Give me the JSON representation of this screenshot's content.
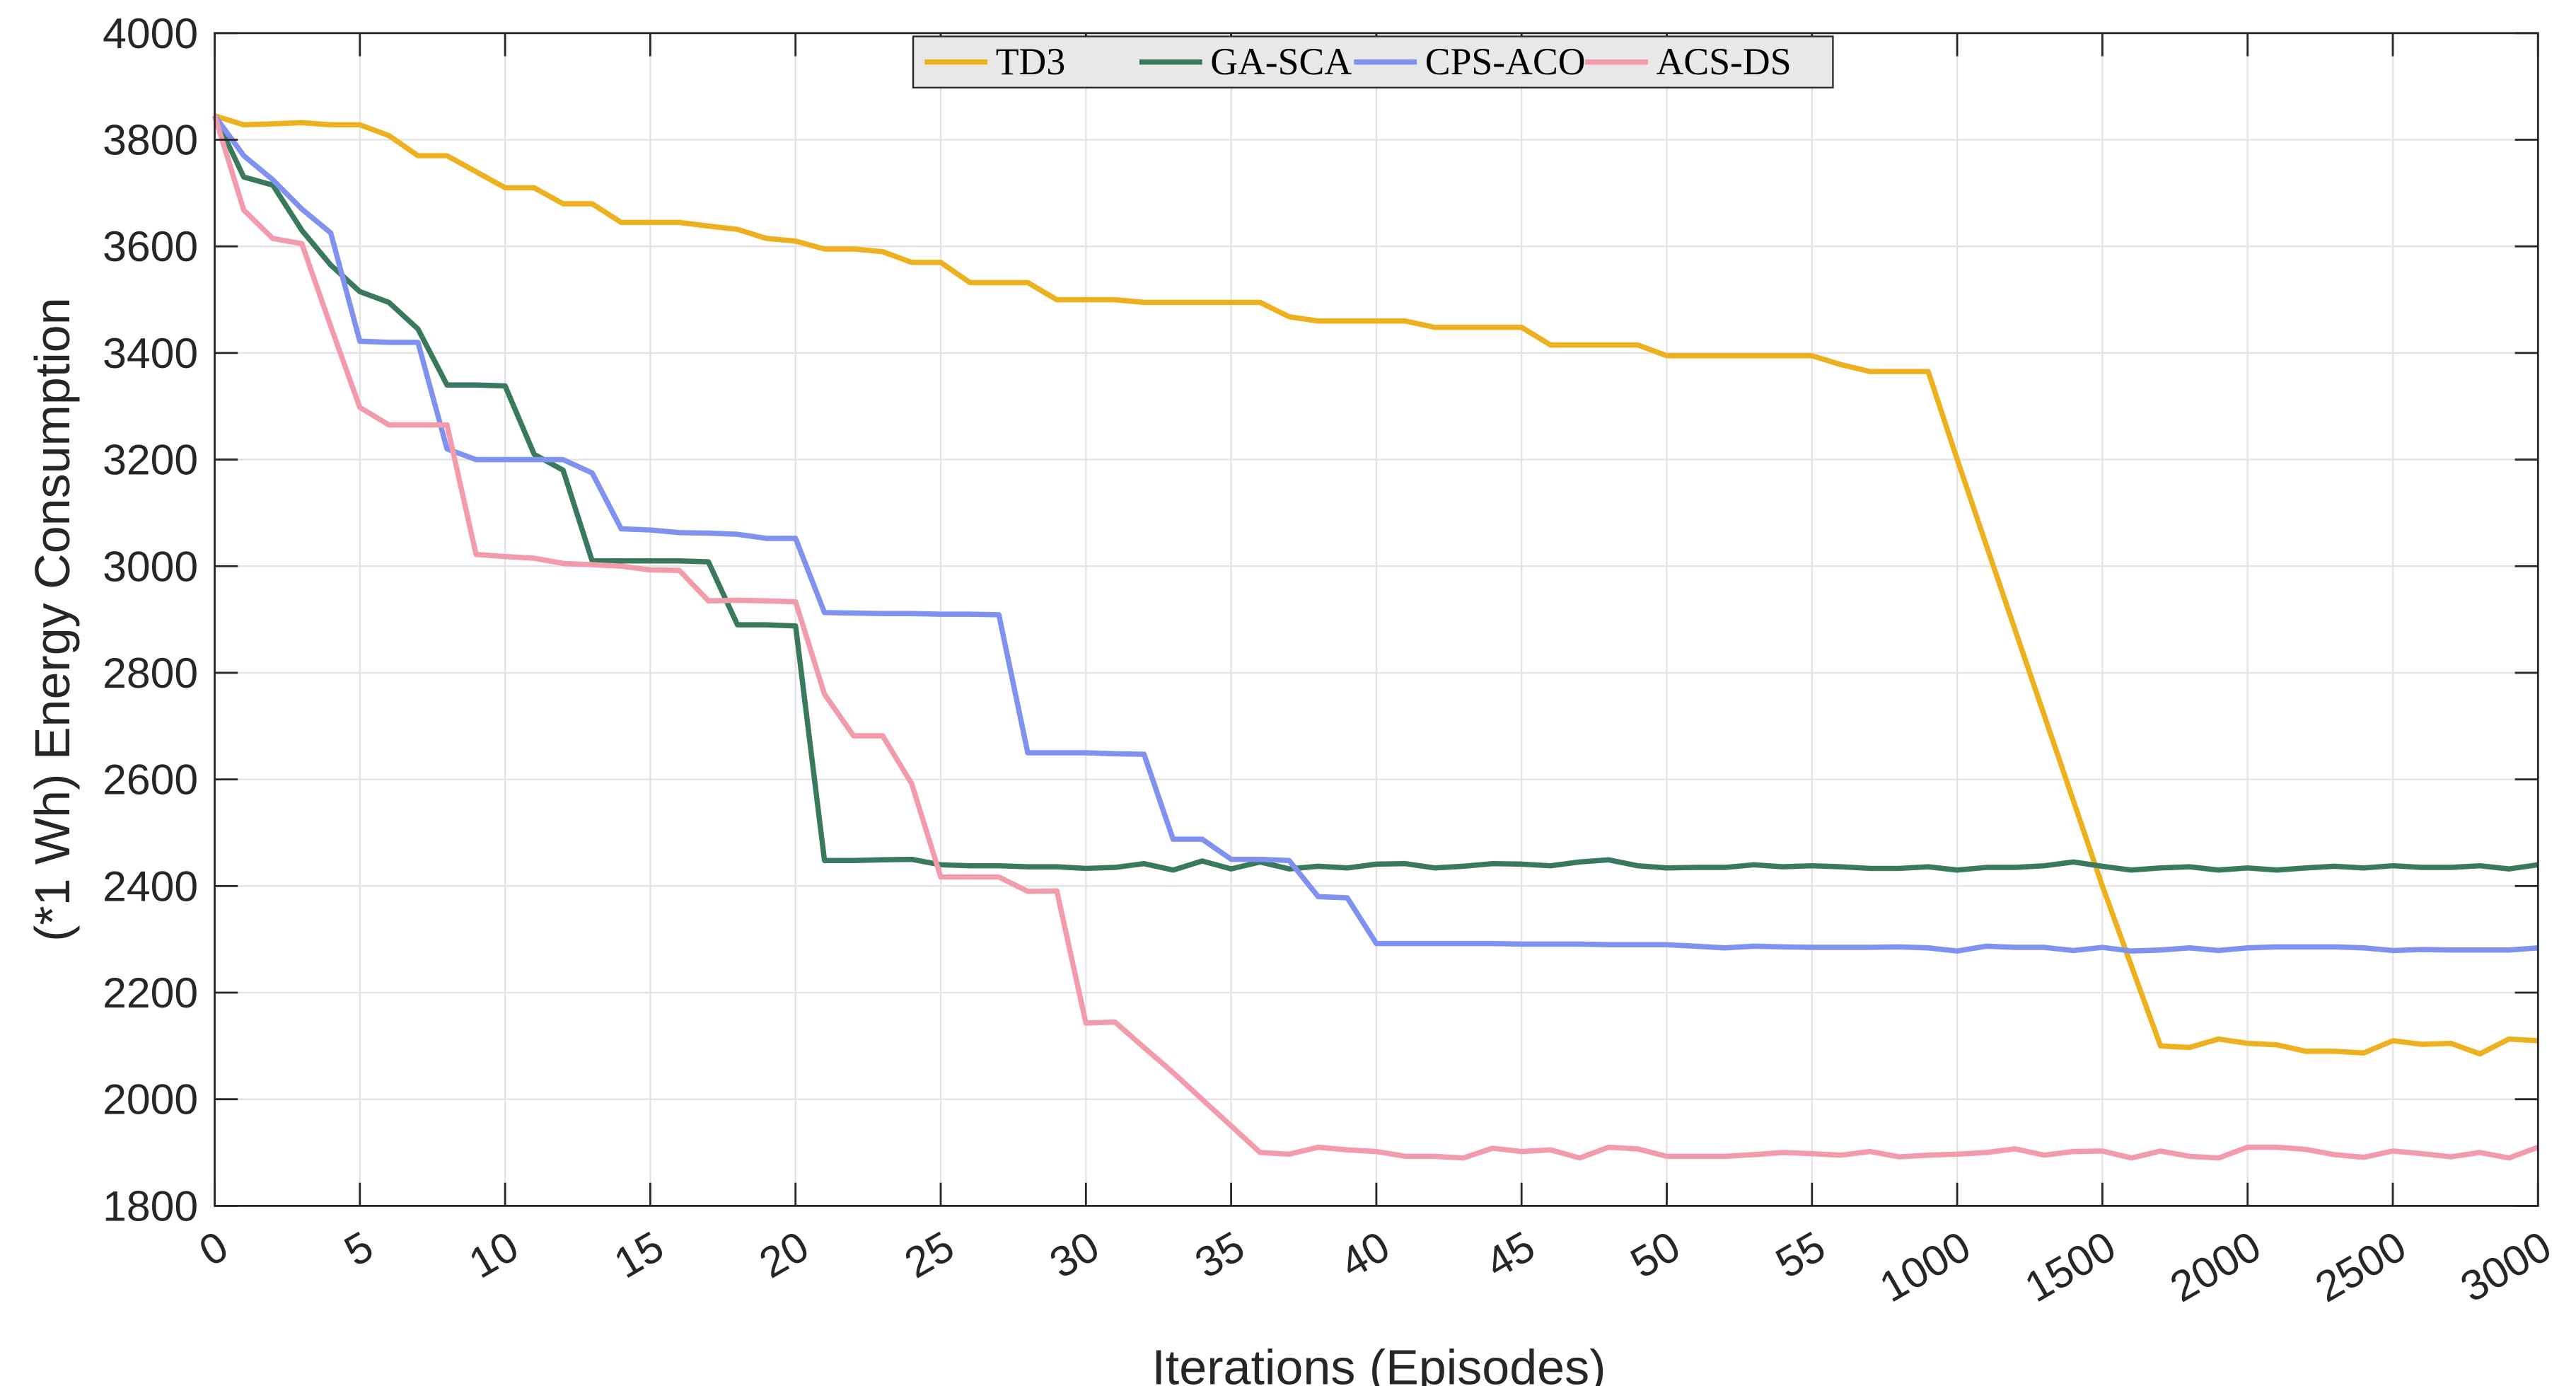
{
  "chart_data": {
    "type": "line",
    "title": "",
    "xlabel": "Iterations (Episodes)",
    "ylabel": "(*1 Wh) Energy Consumption",
    "ylim": [
      1800,
      4000
    ],
    "yticks": [
      1800,
      2000,
      2200,
      2400,
      2600,
      2800,
      3000,
      3200,
      3400,
      3600,
      3800,
      4000
    ],
    "xticks": [
      "0",
      "5",
      "10",
      "15",
      "20",
      "25",
      "30",
      "35",
      "40",
      "45",
      "50",
      "55",
      "1000",
      "1500",
      "2000",
      "2500",
      "3000"
    ],
    "x_scale": "piecewise: 0-59 step 1, then 1000-3000 step 100, evenly spaced",
    "grid": true,
    "legend_position": "top-center",
    "x": [
      0,
      1,
      2,
      3,
      4,
      5,
      6,
      7,
      8,
      9,
      10,
      11,
      12,
      13,
      14,
      15,
      16,
      17,
      18,
      19,
      20,
      21,
      22,
      23,
      24,
      25,
      26,
      27,
      28,
      29,
      30,
      31,
      32,
      33,
      34,
      35,
      36,
      37,
      38,
      39,
      40,
      41,
      42,
      43,
      44,
      45,
      46,
      47,
      48,
      49,
      50,
      51,
      52,
      53,
      54,
      55,
      56,
      57,
      58,
      59,
      1000,
      1100,
      1200,
      1300,
      1400,
      1500,
      1600,
      1700,
      1800,
      1900,
      2000,
      2100,
      2200,
      2300,
      2400,
      2500,
      2600,
      2700,
      2800,
      2900,
      3000
    ],
    "series": [
      {
        "name": "TD3",
        "color": "#EDB120",
        "values": [
          3845,
          3828,
          3830,
          3832,
          3828,
          3828,
          3808,
          3770,
          3770,
          3740,
          3710,
          3710,
          3680,
          3680,
          3645,
          3645,
          3645,
          3638,
          3632,
          3615,
          3610,
          3595,
          3595,
          3590,
          3570,
          3570,
          3532,
          3532,
          3532,
          3500,
          3500,
          3500,
          3495,
          3495,
          3495,
          3495,
          3495,
          3468,
          3460,
          3460,
          3460,
          3460,
          3448,
          3448,
          3448,
          3448,
          3415,
          3415,
          3415,
          3415,
          3395,
          3395,
          3395,
          3395,
          3395,
          3395,
          3378,
          3365,
          3365,
          3365,
          3200,
          3040,
          2880,
          2720,
          2560,
          2400,
          2250,
          2100,
          2097,
          2113,
          2105,
          2102,
          2090,
          2090,
          2087,
          2110,
          2103,
          2105,
          2085,
          2113,
          2110
        ]
      },
      {
        "name": "GA-SCA",
        "color": "#3A7A5C",
        "values": [
          3845,
          3730,
          3715,
          3630,
          3565,
          3515,
          3495,
          3445,
          3340,
          3340,
          3338,
          3210,
          3180,
          3010,
          3010,
          3010,
          3010,
          3008,
          2890,
          2890,
          2888,
          2448,
          2448,
          2449,
          2450,
          2440,
          2438,
          2438,
          2436,
          2436,
          2433,
          2435,
          2442,
          2430,
          2447,
          2432,
          2445,
          2432,
          2437,
          2434,
          2441,
          2442,
          2434,
          2437,
          2442,
          2441,
          2438,
          2445,
          2449,
          2438,
          2434,
          2435,
          2435,
          2440,
          2436,
          2438,
          2436,
          2433,
          2433,
          2436,
          2430,
          2435,
          2435,
          2438,
          2445,
          2437,
          2430,
          2434,
          2436,
          2430,
          2434,
          2430,
          2434,
          2437,
          2434,
          2438,
          2435,
          2435,
          2438,
          2432,
          2440
        ]
      },
      {
        "name": "CPS-ACO",
        "color": "#8092F0",
        "values": [
          3845,
          3770,
          3725,
          3670,
          3625,
          3422,
          3420,
          3420,
          3220,
          3200,
          3200,
          3200,
          3200,
          3175,
          3070,
          3068,
          3063,
          3062,
          3060,
          3052,
          3052,
          2913,
          2912,
          2911,
          2911,
          2910,
          2910,
          2909,
          2650,
          2650,
          2650,
          2648,
          2647,
          2488,
          2488,
          2450,
          2450,
          2448,
          2380,
          2378,
          2292,
          2292,
          2292,
          2292,
          2292,
          2291,
          2291,
          2291,
          2290,
          2290,
          2290,
          2287,
          2284,
          2287,
          2286,
          2285,
          2285,
          2285,
          2286,
          2284,
          2278,
          2287,
          2285,
          2285,
          2279,
          2285,
          2278,
          2280,
          2284,
          2279,
          2284,
          2286,
          2286,
          2286,
          2284,
          2279,
          2281,
          2280,
          2280,
          2280,
          2284
        ]
      },
      {
        "name": "ACS-DS",
        "color": "#F29BAA",
        "values": [
          3845,
          3668,
          3615,
          3605,
          3450,
          3298,
          3265,
          3265,
          3265,
          3022,
          3018,
          3015,
          3005,
          3003,
          3000,
          2993,
          2992,
          2935,
          2936,
          2935,
          2933,
          2760,
          2682,
          2682,
          2592,
          2417,
          2417,
          2417,
          2390,
          2391,
          2143,
          2145,
          2097,
          2050,
          2000,
          1950,
          1900,
          1897,
          1910,
          1905,
          1902,
          1893,
          1893,
          1890,
          1908,
          1902,
          1905,
          1890,
          1910,
          1907,
          1893,
          1893,
          1893,
          1896,
          1900,
          1898,
          1895,
          1902,
          1892,
          1895,
          1897,
          1900,
          1907,
          1895,
          1902,
          1903,
          1890,
          1903,
          1893,
          1890,
          1910,
          1910,
          1906,
          1896,
          1891,
          1903,
          1898,
          1892,
          1900,
          1890,
          1910
        ]
      }
    ]
  }
}
